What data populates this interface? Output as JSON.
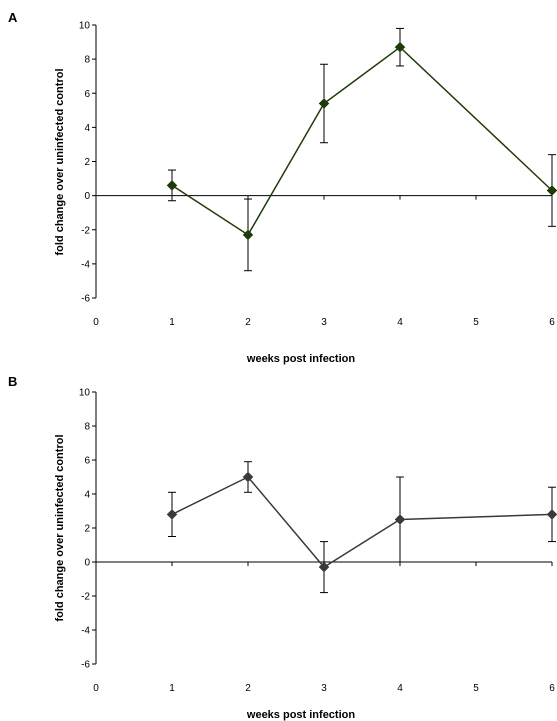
{
  "chart_data": [
    {
      "panel_label": "A",
      "type": "line",
      "x": [
        1,
        2,
        3,
        4,
        6
      ],
      "y": [
        0.6,
        -2.3,
        5.4,
        8.7,
        0.3
      ],
      "error": [
        0.9,
        2.1,
        2.3,
        1.1,
        2.1
      ],
      "xlim": [
        0,
        6
      ],
      "xticks": [
        0,
        1,
        2,
        3,
        4,
        5,
        6
      ],
      "ylim": [
        -6,
        10
      ],
      "yticks": [
        -6,
        -4,
        -2,
        0,
        2,
        4,
        6,
        8,
        10
      ],
      "xlabel": "weeks post infection",
      "ylabel": "fold change over uninfected control",
      "color": "#1f3b0b",
      "grid": false
    },
    {
      "panel_label": "B",
      "type": "line",
      "x": [
        1,
        2,
        3,
        4,
        6
      ],
      "y": [
        2.8,
        5.0,
        -0.3,
        2.5,
        2.8
      ],
      "error": [
        1.3,
        0.9,
        1.5,
        2.5,
        1.6
      ],
      "xlim": [
        0,
        6
      ],
      "xticks": [
        0,
        1,
        2,
        3,
        4,
        5,
        6
      ],
      "ylim": [
        -6,
        10
      ],
      "yticks": [
        -6,
        -4,
        -2,
        0,
        2,
        4,
        6,
        8,
        10
      ],
      "xlabel": "weeks post infection",
      "ylabel": "fold change over uninfected control",
      "color": "#3a3a3a",
      "grid": false
    }
  ]
}
